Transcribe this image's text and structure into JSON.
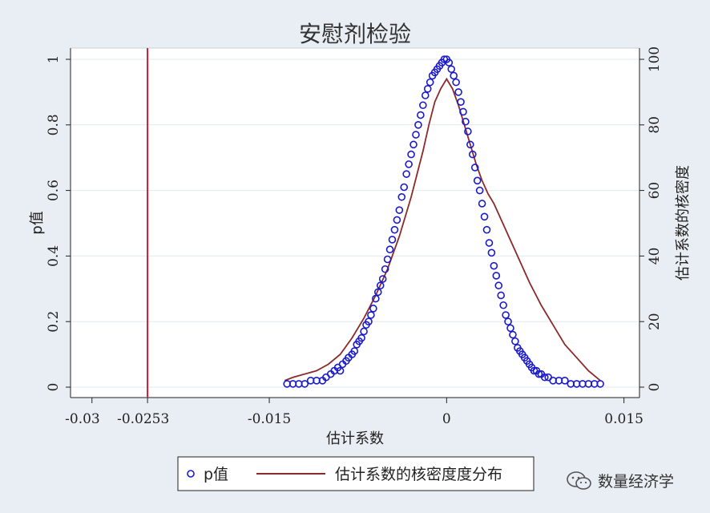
{
  "chart_data": {
    "type": "scatter",
    "title": "安慰剂检验",
    "xlabel": "估计系数",
    "ylabel_left": "p值",
    "ylabel_right": "估计系数的核密度",
    "xlim": [
      -0.031,
      0.0155
    ],
    "ylim_left": [
      0,
      1
    ],
    "ylim_right": [
      0,
      100
    ],
    "x_ticks": [
      "-0.03",
      "-0.0253",
      "-0.015",
      "0",
      "0.015"
    ],
    "x_tick_values": [
      -0.03,
      -0.0253,
      -0.015,
      0,
      0.015
    ],
    "y_ticks_left": [
      "0",
      "0.2",
      "0.4",
      "0.6",
      "0.8",
      "1"
    ],
    "y_ticks_right": [
      "0",
      "20",
      "40",
      "60",
      "80",
      "100"
    ],
    "reference_line": {
      "x": -0.0253,
      "color": "#c41e3a"
    },
    "series": [
      {
        "name": "p值",
        "kind": "scatter",
        "marker": "hollow-circle",
        "color": "#1a1acc",
        "x": [
          -0.0135,
          -0.013,
          -0.0125,
          -0.012,
          -0.0115,
          -0.011,
          -0.0105,
          -0.0102,
          -0.0098,
          -0.0095,
          -0.0092,
          -0.009,
          -0.0088,
          -0.0085,
          -0.0083,
          -0.008,
          -0.0078,
          -0.0076,
          -0.0074,
          -0.0072,
          -0.007,
          -0.0068,
          -0.0066,
          -0.0064,
          -0.0062,
          -0.006,
          -0.0058,
          -0.0056,
          -0.0054,
          -0.0052,
          -0.005,
          -0.0048,
          -0.0046,
          -0.0044,
          -0.0042,
          -0.004,
          -0.0038,
          -0.0036,
          -0.0034,
          -0.0032,
          -0.003,
          -0.0028,
          -0.0026,
          -0.0024,
          -0.0022,
          -0.002,
          -0.0018,
          -0.0016,
          -0.0014,
          -0.0012,
          -0.001,
          -0.0008,
          -0.0006,
          -0.0004,
          -0.0002,
          0,
          0.0002,
          0.0004,
          0.0006,
          0.0008,
          0.001,
          0.0012,
          0.0014,
          0.0016,
          0.0018,
          0.002,
          0.0022,
          0.0024,
          0.0026,
          0.0028,
          0.003,
          0.0032,
          0.0034,
          0.0036,
          0.0038,
          0.004,
          0.0042,
          0.0044,
          0.0046,
          0.0048,
          0.005,
          0.0052,
          0.0054,
          0.0056,
          0.0058,
          0.006,
          0.0062,
          0.0064,
          0.0066,
          0.0068,
          0.007,
          0.0072,
          0.0074,
          0.0076,
          0.0078,
          0.008,
          0.0083,
          0.0086,
          0.009,
          0.0095,
          0.01,
          0.0105,
          0.011,
          0.0115,
          0.012,
          0.0125,
          0.013
        ],
        "y": [
          0.01,
          0.01,
          0.01,
          0.01,
          0.02,
          0.02,
          0.02,
          0.03,
          0.04,
          0.05,
          0.06,
          0.05,
          0.07,
          0.08,
          0.09,
          0.1,
          0.11,
          0.13,
          0.14,
          0.15,
          0.17,
          0.19,
          0.2,
          0.22,
          0.24,
          0.27,
          0.29,
          0.31,
          0.33,
          0.36,
          0.39,
          0.42,
          0.45,
          0.48,
          0.51,
          0.54,
          0.58,
          0.61,
          0.65,
          0.68,
          0.71,
          0.74,
          0.77,
          0.8,
          0.83,
          0.86,
          0.89,
          0.91,
          0.93,
          0.95,
          0.96,
          0.97,
          0.98,
          0.99,
          1,
          1,
          0.99,
          0.97,
          0.95,
          0.93,
          0.9,
          0.87,
          0.84,
          0.81,
          0.78,
          0.74,
          0.71,
          0.67,
          0.63,
          0.6,
          0.56,
          0.52,
          0.48,
          0.44,
          0.41,
          0.37,
          0.34,
          0.31,
          0.28,
          0.25,
          0.22,
          0.2,
          0.18,
          0.16,
          0.14,
          0.12,
          0.11,
          0.1,
          0.09,
          0.08,
          0.07,
          0.06,
          0.05,
          0.05,
          0.04,
          0.04,
          0.03,
          0.03,
          0.02,
          0.02,
          0.02,
          0.01,
          0.01,
          0.01,
          0.01,
          0.01,
          0.01
        ]
      },
      {
        "name": "估计系数的核密度度分布",
        "kind": "line",
        "axis": "right",
        "color": "#8b2a2a",
        "x": [
          -0.0137,
          -0.013,
          -0.012,
          -0.011,
          -0.01,
          -0.009,
          -0.008,
          -0.007,
          -0.006,
          -0.005,
          -0.004,
          -0.003,
          -0.0025,
          -0.002,
          -0.0015,
          -0.001,
          -0.0005,
          0,
          0.0005,
          0.001,
          0.0015,
          0.002,
          0.0025,
          0.003,
          0.0035,
          0.004,
          0.005,
          0.006,
          0.007,
          0.008,
          0.009,
          0.01,
          0.011,
          0.012,
          0.013
        ],
        "y": [
          2,
          3,
          4,
          5,
          7,
          10,
          15,
          21,
          28,
          36,
          46,
          58,
          65,
          72,
          80,
          87,
          91,
          94,
          91,
          86,
          80,
          74,
          68,
          63,
          59,
          56,
          48,
          40,
          32,
          25,
          19,
          13,
          9,
          5,
          2
        ]
      }
    ]
  },
  "legend": {
    "items": [
      {
        "label": "p值",
        "marker": "circle",
        "color": "#1a1acc"
      },
      {
        "label": "估计系数的核密度度分布",
        "marker": "line",
        "color": "#8b2a2a"
      }
    ]
  },
  "watermark": {
    "text": "数量经济学"
  }
}
